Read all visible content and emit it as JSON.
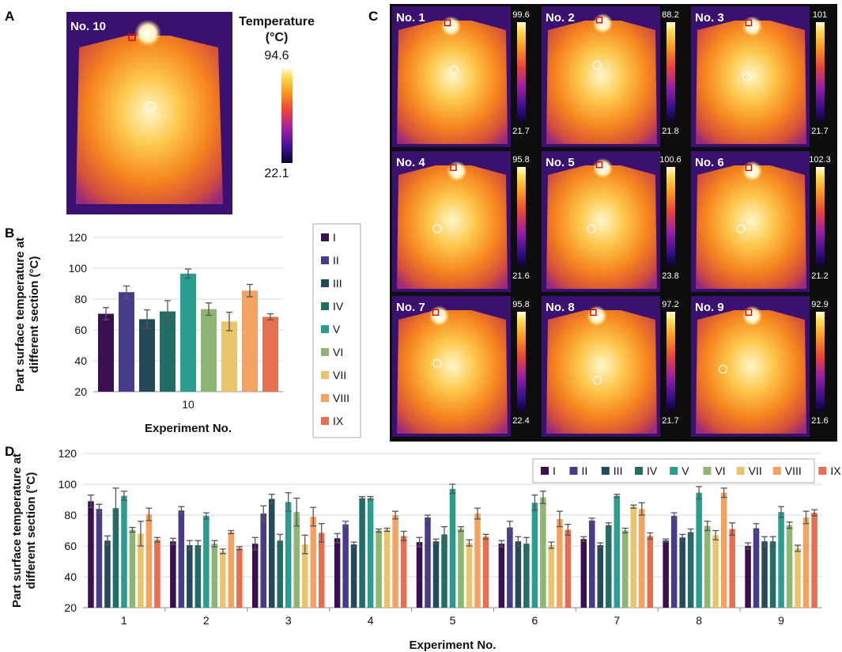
{
  "panel_labels": {
    "a": "A",
    "b": "B",
    "c": "C",
    "d": "D"
  },
  "colors": {
    "I": "#3b0f4f",
    "II": "#453c8c",
    "III": "#23495b",
    "IV": "#226d66",
    "V": "#2a9d8f",
    "VI": "#8fb573",
    "VII": "#e9c46a",
    "VIII": "#f4a261",
    "IX": "#e76f51",
    "error_bar": "#555555",
    "grid": "#d9d9d9"
  },
  "panel_a": {
    "label": "No. 10",
    "scale_title_line1": "Temperature",
    "scale_title_line2": "(°C)",
    "scale_max": "94.6",
    "scale_min": "22.1"
  },
  "panel_c": {
    "thermograms": [
      {
        "label": "No. 1",
        "max": "99.6",
        "min": "21.7"
      },
      {
        "label": "No. 2",
        "max": "88.2",
        "min": "21.8"
      },
      {
        "label": "No. 3",
        "max": "101",
        "min": "21.7"
      },
      {
        "label": "No. 4",
        "max": "95.8",
        "min": "21.6"
      },
      {
        "label": "No. 5",
        "max": "100.6",
        "min": "23.8"
      },
      {
        "label": "No. 6",
        "max": "102.3",
        "min": "21.2"
      },
      {
        "label": "No. 7",
        "max": "95.8",
        "min": "22.4"
      },
      {
        "label": "No. 8",
        "max": "97.2",
        "min": "21.7"
      },
      {
        "label": "No. 9",
        "max": "92.9",
        "min": "21.6"
      }
    ]
  },
  "chart_data": [
    {
      "id": "B",
      "type": "bar",
      "title": "",
      "xlabel": "Experiment No.",
      "ylabel_line1": "Part surface temperature at",
      "ylabel_line2": "different section (°C)",
      "ylim": [
        20,
        120
      ],
      "yticks": [
        "20",
        "40",
        "60",
        "80",
        "100",
        "120"
      ],
      "categories": [
        "10"
      ],
      "legend": "right",
      "series": [
        {
          "name": "I",
          "values": [
            70.5
          ],
          "errors": [
            4
          ]
        },
        {
          "name": "II",
          "values": [
            84.5
          ],
          "errors": [
            4
          ]
        },
        {
          "name": "III",
          "values": [
            67
          ],
          "errors": [
            6
          ]
        },
        {
          "name": "IV",
          "values": [
            72
          ],
          "errors": [
            7
          ]
        },
        {
          "name": "V",
          "values": [
            96.5
          ],
          "errors": [
            3
          ]
        },
        {
          "name": "VI",
          "values": [
            73.5
          ],
          "errors": [
            4
          ]
        },
        {
          "name": "VII",
          "values": [
            65.5
          ],
          "errors": [
            6
          ]
        },
        {
          "name": "VIII",
          "values": [
            85.5
          ],
          "errors": [
            4
          ]
        },
        {
          "name": "IX",
          "values": [
            68.5
          ],
          "errors": [
            2
          ]
        }
      ]
    },
    {
      "id": "D",
      "type": "bar",
      "title": "",
      "xlabel": "Experiment No.",
      "ylabel_line1": "Part surface temperature at",
      "ylabel_line2": "different section (°C)",
      "ylim": [
        20,
        120
      ],
      "yticks": [
        "20",
        "40",
        "60",
        "80",
        "100",
        "120"
      ],
      "categories": [
        "1",
        "2",
        "3",
        "4",
        "5",
        "6",
        "7",
        "8",
        "9"
      ],
      "legend": "top-right",
      "series": [
        {
          "name": "I",
          "values": [
            89,
            63,
            61.5,
            65,
            62.5,
            61.5,
            64.5,
            63.5,
            60
          ],
          "errors": [
            4,
            2,
            4,
            3,
            3,
            2,
            1.5,
            1,
            2
          ]
        },
        {
          "name": "II",
          "values": [
            84,
            83,
            81,
            74,
            78.5,
            72,
            76.5,
            79.5,
            71.5
          ],
          "errors": [
            3,
            2.5,
            5,
            2,
            1.5,
            4,
            1.5,
            2,
            3
          ]
        },
        {
          "name": "III",
          "values": [
            63.5,
            60.5,
            90.5,
            61,
            63,
            63,
            60.5,
            65.5,
            63
          ],
          "errors": [
            3,
            3,
            3,
            1.5,
            1.5,
            3,
            1.5,
            2,
            3
          ]
        },
        {
          "name": "IV",
          "values": [
            84.5,
            60.5,
            63.5,
            91,
            67.5,
            61.5,
            73.5,
            69,
            63
          ],
          "errors": [
            13,
            3,
            4,
            1,
            5,
            4,
            1.5,
            2,
            3
          ]
        },
        {
          "name": "V",
          "values": [
            92.5,
            79.5,
            88.5,
            91,
            97,
            88,
            92.5,
            94.5,
            82
          ],
          "errors": [
            3,
            2,
            6,
            1,
            3,
            5,
            1,
            4,
            3.5
          ]
        },
        {
          "name": "VI",
          "values": [
            70.5,
            61.5,
            82,
            70,
            71,
            91.5,
            70,
            73,
            73.5
          ],
          "errors": [
            1.5,
            2,
            9,
            1,
            1.5,
            4,
            1.5,
            3,
            2
          ]
        },
        {
          "name": "VII",
          "values": [
            68,
            56.5,
            61,
            70.5,
            62,
            60.5,
            85.5,
            67,
            58.5
          ],
          "errors": [
            8,
            1.5,
            6,
            1,
            2,
            2,
            1,
            3,
            2
          ]
        },
        {
          "name": "VIII",
          "values": [
            80.5,
            69,
            79,
            80,
            81,
            77.5,
            84,
            94.5,
            78.5
          ],
          "errors": [
            4,
            1,
            6,
            2.5,
            3.5,
            5,
            4,
            3,
            4
          ]
        },
        {
          "name": "IX",
          "values": [
            64,
            58.5,
            68.5,
            66.5,
            66,
            70.5,
            66.5,
            71,
            81.5
          ],
          "errors": [
            1.5,
            1,
            6,
            3,
            1.5,
            3.5,
            2,
            4,
            2
          ]
        }
      ]
    }
  ]
}
